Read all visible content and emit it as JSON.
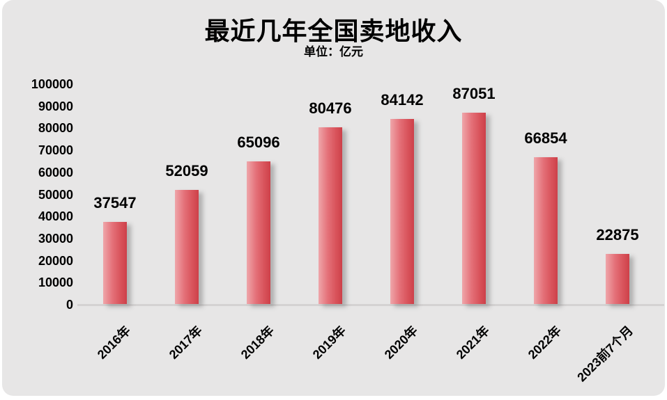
{
  "title": "最近几年全国卖地收入",
  "subtitle": "单位：亿元",
  "colors": {
    "panel_background": "#e7e6e6",
    "page_background": "#ffffff",
    "bar_gradient_light": "#efa6aa",
    "bar_gradient_dark": "#cd4049",
    "axis_line": "#d4d2d2",
    "text": "#000000"
  },
  "chart_data": {
    "type": "bar",
    "title": "最近几年全国卖地收入",
    "subtitle": "单位：亿元",
    "categories": [
      "2016年",
      "2017年",
      "2018年",
      "2019年",
      "2020年",
      "2021年",
      "2022年",
      "2023前7个月"
    ],
    "values": [
      37547,
      52059,
      65096,
      80476,
      84142,
      87051,
      66854,
      22875
    ],
    "xlabel": "",
    "ylabel": "",
    "ylim": [
      0,
      100000
    ],
    "yticks": [
      0,
      10000,
      20000,
      30000,
      40000,
      50000,
      60000,
      70000,
      80000,
      90000,
      100000
    ],
    "grid": false,
    "legend": false,
    "data_labels": true,
    "x_label_rotation_deg": -45
  }
}
